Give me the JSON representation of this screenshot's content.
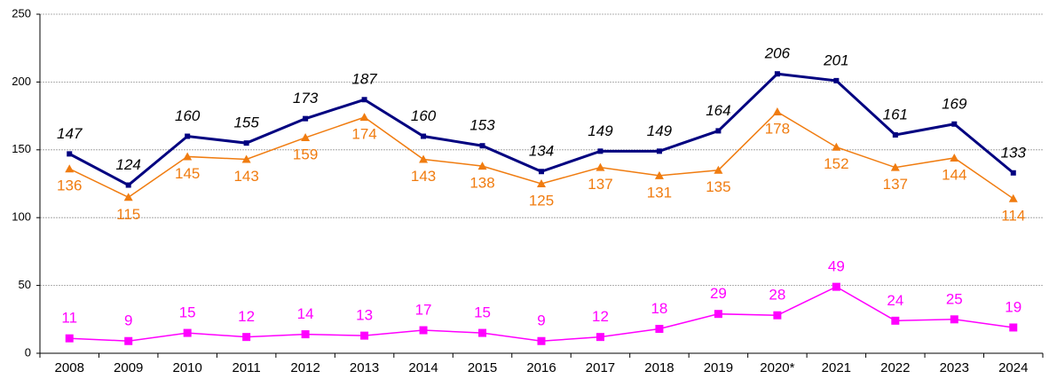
{
  "chart_data": {
    "type": "line",
    "categories": [
      "2008",
      "2009",
      "2010",
      "2011",
      "2012",
      "2013",
      "2014",
      "2015",
      "2016",
      "2017",
      "2018",
      "2019",
      "2020*",
      "2021",
      "2022",
      "2023",
      "2024"
    ],
    "series": [
      {
        "color": "#000080",
        "marker": "square",
        "label_position": "above",
        "label_color": "#000000",
        "label_italic": true,
        "values": [
          147,
          124,
          160,
          155,
          173,
          187,
          160,
          153,
          134,
          149,
          149,
          164,
          206,
          201,
          161,
          169,
          133
        ]
      },
      {
        "color": "#f07c10",
        "marker": "triangle",
        "label_position": "below",
        "label_color": "#f07c10",
        "label_italic": false,
        "values": [
          136,
          115,
          145,
          143,
          159,
          174,
          143,
          138,
          125,
          137,
          131,
          135,
          178,
          152,
          137,
          144,
          114
        ]
      },
      {
        "color": "#ff00ff",
        "marker": "square",
        "label_position": "above",
        "label_color": "#ff00ff",
        "label_italic": false,
        "values": [
          11,
          9,
          15,
          12,
          14,
          13,
          17,
          15,
          9,
          12,
          18,
          29,
          28,
          49,
          24,
          25,
          19
        ]
      }
    ],
    "ylim": [
      0,
      250
    ],
    "yticks": [
      0,
      50,
      100,
      150,
      200,
      250
    ],
    "grid": true
  }
}
